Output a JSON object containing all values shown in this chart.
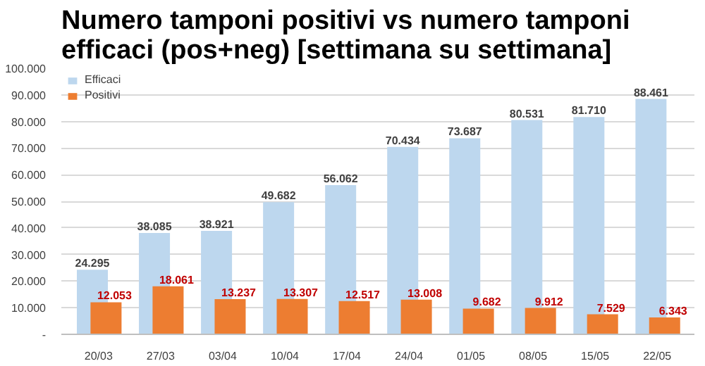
{
  "chart_data": {
    "type": "bar",
    "title": "Numero tamponi positivi vs numero tamponi efficaci (pos+neg) [settimana su settimana]",
    "categories": [
      "20/03",
      "27/03",
      "03/04",
      "10/04",
      "17/04",
      "24/04",
      "01/05",
      "08/05",
      "15/05",
      "22/05"
    ],
    "series": [
      {
        "name": "Efficaci",
        "color": "#bdd7ee",
        "values": [
          24295,
          38085,
          38921,
          49682,
          56062,
          70434,
          73687,
          80531,
          81710,
          88461
        ],
        "value_labels": [
          "24.295",
          "38.085",
          "38.921",
          "49.682",
          "56.062",
          "70.434",
          "73.687",
          "80.531",
          "81.710",
          "88.461"
        ]
      },
      {
        "name": "Positivi",
        "color": "#ed7d31",
        "values": [
          12053,
          18061,
          13237,
          13307,
          12517,
          13008,
          9682,
          9912,
          7529,
          6343
        ],
        "value_labels": [
          "12.053",
          "18.061",
          "13.237",
          "13.307",
          "12.517",
          "13.008",
          "9.682",
          "9.912",
          "7.529",
          "6.343"
        ]
      }
    ],
    "ylim": [
      0,
      100000
    ],
    "yticks": [
      {
        "value": 0,
        "label": "-"
      },
      {
        "value": 10000,
        "label": "10.000"
      },
      {
        "value": 20000,
        "label": "20.000"
      },
      {
        "value": 30000,
        "label": "30.000"
      },
      {
        "value": 40000,
        "label": "40.000"
      },
      {
        "value": 50000,
        "label": "50.000"
      },
      {
        "value": 60000,
        "label": "60.000"
      },
      {
        "value": 70000,
        "label": "70.000"
      },
      {
        "value": 80000,
        "label": "80.000"
      },
      {
        "value": 90000,
        "label": "90.000"
      },
      {
        "value": 100000,
        "label": "100.000"
      }
    ],
    "grid": "y",
    "legend": "top left"
  }
}
